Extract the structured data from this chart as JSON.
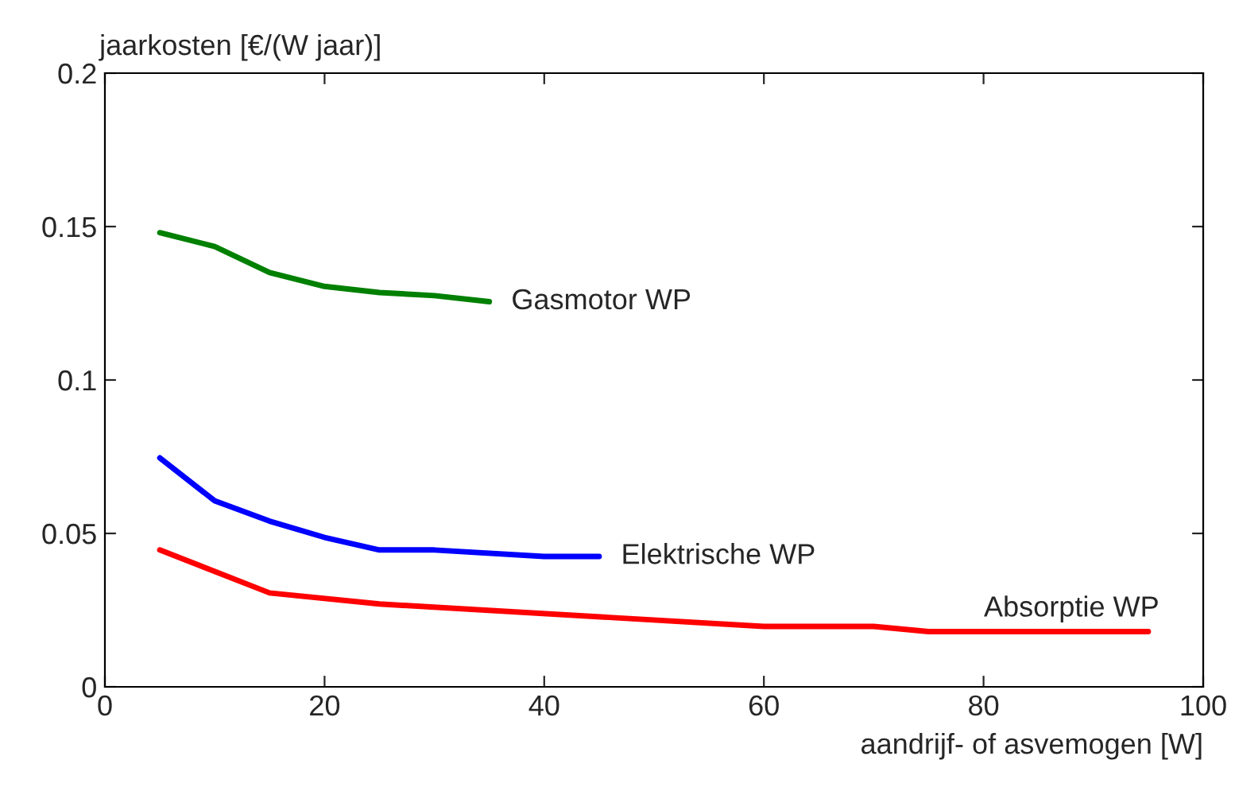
{
  "chart_data": {
    "type": "line",
    "xlabel": "aandrijf- of asvemogen [W]",
    "ylabel": "jaarkosten [€/(W jaar)]",
    "xlim": [
      0,
      100
    ],
    "xticks": [
      0,
      20,
      40,
      60,
      80,
      100
    ],
    "ylim": [
      0,
      0.2
    ],
    "yticks": [
      0,
      0.05,
      0.1,
      0.15,
      0.2
    ],
    "grid": false,
    "legend": false,
    "marker": "none",
    "line_style": "solid",
    "series": [
      {
        "name": "Gasmotor WP",
        "color": "#008000",
        "x": [
          5,
          10,
          15,
          20,
          25,
          30,
          35
        ],
        "values": [
          0.148,
          0.1435,
          0.135,
          0.1305,
          0.1285,
          0.1275,
          0.1255
        ]
      },
      {
        "name": "Elektrische WP",
        "color": "#0000ff",
        "x": [
          5,
          10,
          15,
          20,
          25,
          30,
          40,
          45
        ],
        "values": [
          0.0746,
          0.0606,
          0.054,
          0.0487,
          0.0446,
          0.0446,
          0.0425,
          0.0425
        ]
      },
      {
        "name": "Absorptie WP",
        "color": "#ff0000",
        "x": [
          5,
          15,
          25,
          60,
          70,
          75,
          95
        ],
        "values": [
          0.0446,
          0.0306,
          0.027,
          0.0197,
          0.0197,
          0.018,
          0.018
        ]
      }
    ]
  }
}
